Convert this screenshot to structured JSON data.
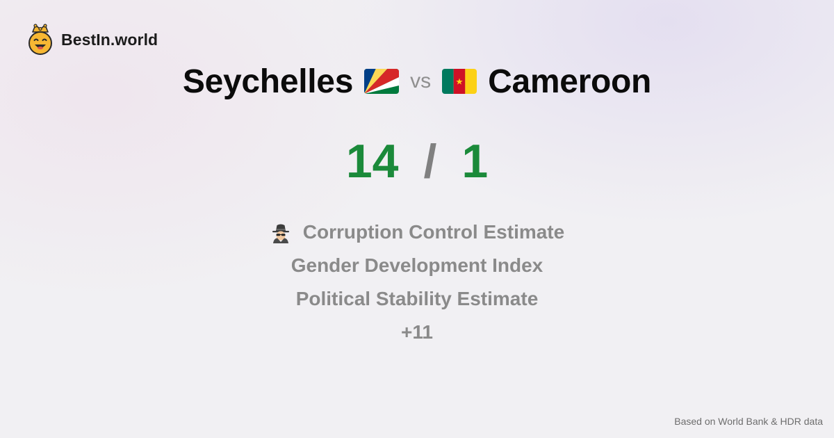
{
  "brand": {
    "name": "BestIn.world",
    "logo_icon": "crowned-smiley-icon"
  },
  "comparison": {
    "left": {
      "name": "Seychelles",
      "flag_icon": "seychelles-flag-icon",
      "flag_colors": [
        "#003F87",
        "#FCD856",
        "#D62828",
        "#FFFFFF",
        "#007A3D"
      ]
    },
    "separator": "vs",
    "right": {
      "name": "Cameroon",
      "flag_icon": "cameroon-flag-icon",
      "flag_colors": [
        "#007A5E",
        "#CE1126",
        "#FCD116"
      ]
    }
  },
  "score": {
    "left": "14",
    "separator": "/",
    "right": "1",
    "color": "#1b8a3a"
  },
  "metrics": {
    "items": [
      {
        "label": "Corruption Control Estimate",
        "icon": "detective-icon"
      },
      {
        "label": "Gender Development Index"
      },
      {
        "label": "Political Stability Estimate"
      }
    ],
    "more": "+11"
  },
  "footer": {
    "source": "Based on World Bank & HDR data"
  }
}
